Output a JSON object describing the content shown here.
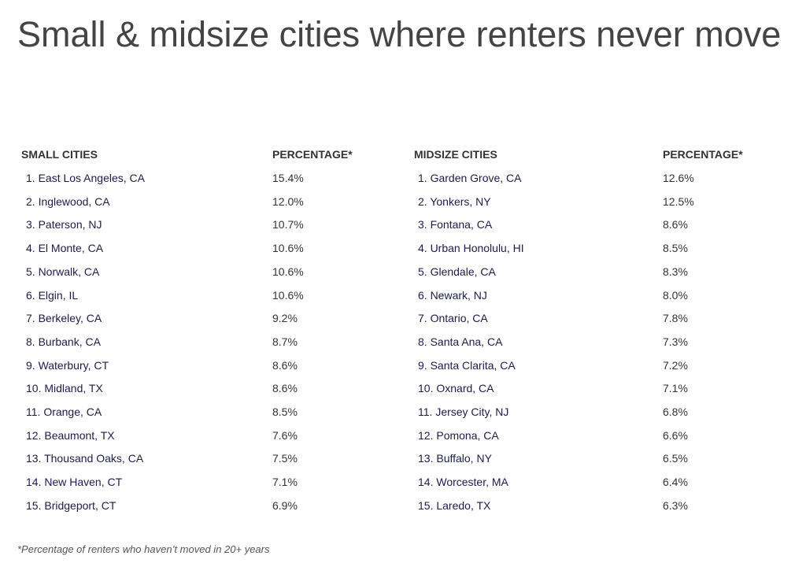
{
  "title": "Small & midsize cities where renters never move",
  "tables": [
    {
      "headers": [
        "SMALL CITIES",
        "PERCENTAGE*"
      ],
      "rows": [
        [
          "1. East Los Angeles, CA",
          "15.4%"
        ],
        [
          "2. Inglewood, CA",
          "12.0%"
        ],
        [
          "3. Paterson, NJ",
          "10.7%"
        ],
        [
          "4. El Monte, CA",
          "10.6%"
        ],
        [
          "5. Norwalk, CA",
          "10.6%"
        ],
        [
          "6. Elgin, IL",
          "10.6%"
        ],
        [
          "7. Berkeley, CA",
          "9.2%"
        ],
        [
          "8. Burbank, CA",
          "8.7%"
        ],
        [
          "9. Waterbury, CT",
          "8.6%"
        ],
        [
          "10. Midland, TX",
          "8.6%"
        ],
        [
          "11. Orange, CA",
          "8.5%"
        ],
        [
          "12. Beaumont, TX",
          "7.6%"
        ],
        [
          "13. Thousand Oaks, CA",
          "7.5%"
        ],
        [
          "14. New Haven, CT",
          "7.1%"
        ],
        [
          "15. Bridgeport, CT",
          "6.9%"
        ]
      ]
    },
    {
      "headers": [
        "MIDSIZE CITIES",
        "PERCENTAGE*"
      ],
      "rows": [
        [
          "1. Garden Grove, CA",
          "12.6%"
        ],
        [
          "2. Yonkers, NY",
          "12.5%"
        ],
        [
          "3. Fontana, CA",
          "8.6%"
        ],
        [
          "4. Urban Honolulu, HI",
          "8.5%"
        ],
        [
          "5. Glendale, CA",
          "8.3%"
        ],
        [
          "6. Newark, NJ",
          "8.0%"
        ],
        [
          "7. Ontario, CA",
          "7.8%"
        ],
        [
          "8. Santa Ana, CA",
          "7.3%"
        ],
        [
          "9. Santa Clarita, CA",
          "7.2%"
        ],
        [
          "10. Oxnard, CA",
          "7.1%"
        ],
        [
          "11. Jersey City, NJ",
          "6.8%"
        ],
        [
          "12. Pomona, CA",
          "6.6%"
        ],
        [
          "13. Buffalo, NY",
          "6.5%"
        ],
        [
          "14. Worcester, MA",
          "6.4%"
        ],
        [
          "15. Laredo, TX",
          "6.3%"
        ]
      ]
    }
  ],
  "footnote": "*Percentage of renters who haven’t moved in 20+ years"
}
